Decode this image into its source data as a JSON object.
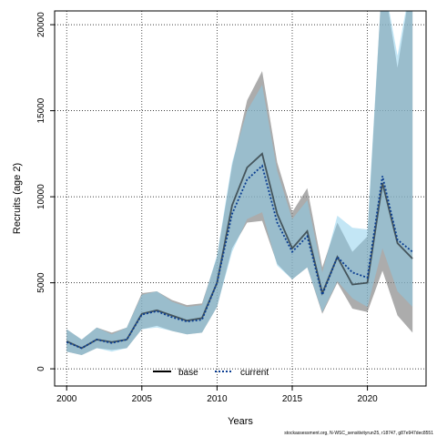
{
  "chart_data": {
    "type": "line",
    "xlabel": "Years",
    "ylabel": "Recruits (age 2)",
    "xlim": [
      1999.2,
      2023.9
    ],
    "ylim": [
      -1000,
      20800
    ],
    "x_ticks": [
      2000,
      2005,
      2010,
      2015,
      2020
    ],
    "y_ticks": [
      0,
      5000,
      10000,
      15000,
      20000
    ],
    "grid": true,
    "legend_position": "bottom-center",
    "x": [
      2000,
      2001,
      2002,
      2003,
      2004,
      2005,
      2006,
      2007,
      2008,
      2009,
      2010,
      2011,
      2012,
      2013,
      2014,
      2015,
      2016,
      2017,
      2018,
      2019,
      2020,
      2021,
      2022,
      2023
    ],
    "series": [
      {
        "name": "base",
        "color": "#000000",
        "band_color": "#808080",
        "values": [
          1600,
          1200,
          1700,
          1550,
          1700,
          3200,
          3400,
          3100,
          2800,
          2950,
          5000,
          9500,
          11700,
          12500,
          9000,
          7000,
          8000,
          4400,
          6500,
          4900,
          5000,
          10800,
          7300,
          6400
        ],
        "lower": [
          1000,
          800,
          1200,
          1100,
          1200,
          2300,
          2500,
          2200,
          2000,
          2100,
          3600,
          7000,
          8500,
          8600,
          6100,
          5200,
          5900,
          3200,
          5000,
          3500,
          3300,
          5700,
          3100,
          2100
        ],
        "upper": [
          2300,
          1700,
          2400,
          2100,
          2400,
          4400,
          4500,
          4000,
          3700,
          3800,
          6500,
          11800,
          15600,
          17300,
          12000,
          9100,
          10500,
          5900,
          8500,
          6800,
          7700,
          23000,
          17500,
          23000
        ]
      },
      {
        "name": "current",
        "color": "#0a3d91",
        "band_color": "#87ceeb",
        "values": [
          1550,
          1200,
          1700,
          1500,
          1700,
          3150,
          3350,
          3000,
          2750,
          2850,
          5000,
          9000,
          11000,
          11800,
          8500,
          6800,
          7700,
          4300,
          6500,
          5600,
          5300,
          11200,
          7500,
          6800
        ],
        "lower": [
          1000,
          800,
          1200,
          1000,
          1200,
          2300,
          2400,
          2200,
          2000,
          2100,
          3600,
          6800,
          8700,
          9100,
          6000,
          5200,
          5900,
          3300,
          5100,
          4100,
          3600,
          7000,
          4500,
          3600
        ],
        "upper": [
          2300,
          1700,
          2400,
          2000,
          2400,
          4300,
          4500,
          3900,
          3600,
          3700,
          6600,
          12000,
          15000,
          16500,
          11500,
          8700,
          9800,
          5600,
          8900,
          8200,
          8100,
          23000,
          18200,
          23000
        ]
      }
    ]
  },
  "footer": "stockassessment.org, N-WSC_sensitivityrun25, r18747, g87e947dec8551"
}
